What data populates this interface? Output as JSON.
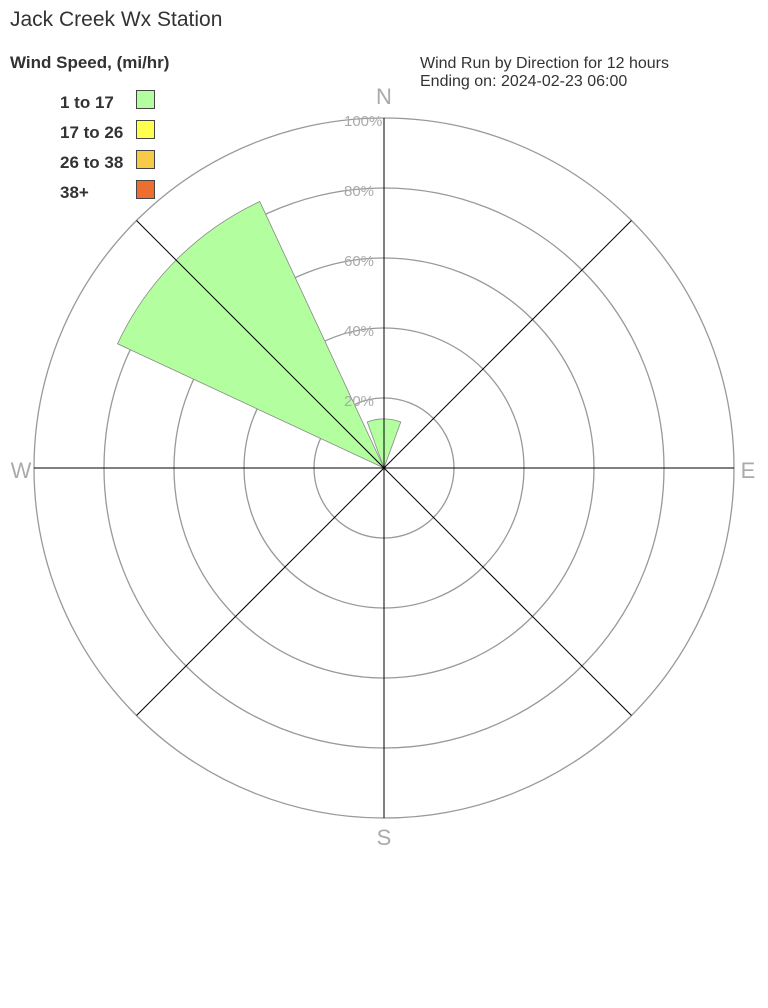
{
  "chart_data": {
    "type": "windrose",
    "title": "Jack Creek Wx Station",
    "subtitle_lines": [
      "Wind Run by Direction for 12 hours",
      "Ending on: 2024-02-23 06:00"
    ],
    "legend_title": "Wind Speed, (mi/hr)",
    "legend": [
      {
        "label": "1 to 17",
        "color": "#b3ff9f"
      },
      {
        "label": "17 to 26",
        "color": "#ffff4d"
      },
      {
        "label": "26 to 38",
        "color": "#f7cb45"
      },
      {
        "label": "38+",
        "color": "#ed6f2f"
      }
    ],
    "directions": [
      "N",
      "E",
      "S",
      "W"
    ],
    "ring_labels": [
      "20%",
      "40%",
      "60%",
      "80%",
      "100%"
    ],
    "rlim": [
      0,
      100
    ],
    "wedges": [
      {
        "direction": "N",
        "bearing": 0,
        "speed_bin": "1 to 17",
        "percent": 14
      },
      {
        "direction": "NW",
        "bearing": 315,
        "speed_bin": "1 to 17",
        "percent": 84
      }
    ]
  }
}
